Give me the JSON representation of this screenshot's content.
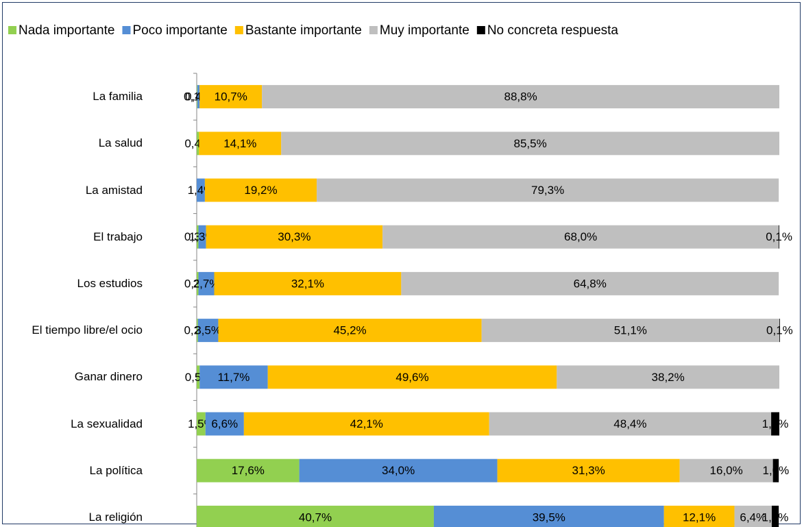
{
  "chart_data": {
    "type": "stacked-bar-horizontal",
    "categories": [
      "La familia",
      "La salud",
      "La amistad",
      "El trabajo",
      "Los estudios",
      "El tiempo libre/el ocio",
      "Ganar dinero",
      "La sexualidad",
      "La política",
      "La religión"
    ],
    "xlim": [
      0,
      100
    ],
    "legend": "top",
    "series": [
      {
        "name": "Nada importante",
        "color": "#92d050",
        "values": [
          0.1,
          0.4,
          null,
          0.3,
          0.3,
          0.2,
          0.5,
          1.5,
          17.6,
          40.7
        ],
        "value_labels": [
          "0,1%",
          "0,4%",
          null,
          "0,3%",
          "0,3%",
          "0,2%",
          "0,5%",
          "1,5%",
          "17,6%",
          "40,7%"
        ]
      },
      {
        "name": "Poco importante",
        "color": "#558ed5",
        "values": [
          0.4,
          null,
          1.4,
          1.3,
          2.7,
          3.5,
          11.7,
          6.6,
          34.0,
          39.5
        ],
        "value_labels": [
          "0,4%",
          null,
          "1,4%",
          "1,3%",
          "2,7%",
          "3,5%",
          "11,7%",
          "6,6%",
          "34,0%",
          "39,5%"
        ]
      },
      {
        "name": "Bastante importante",
        "color": "#ffc000",
        "values": [
          10.7,
          14.1,
          19.2,
          30.3,
          32.1,
          45.2,
          49.6,
          42.1,
          31.3,
          12.1
        ],
        "value_labels": [
          "10,7%",
          "14,1%",
          "19,2%",
          "30,3%",
          "32,1%",
          "45,2%",
          "49,6%",
          "42,1%",
          "31,3%",
          "12,1%"
        ]
      },
      {
        "name": "Muy importante",
        "color": "#bfbfbf",
        "values": [
          88.8,
          85.5,
          79.3,
          68.0,
          64.8,
          51.1,
          38.2,
          48.4,
          16.0,
          6.4
        ],
        "value_labels": [
          "88,8%",
          "85,5%",
          "79,3%",
          "68,0%",
          "64,8%",
          "51,1%",
          "38,2%",
          "48,4%",
          "16,0%",
          "6,4%"
        ]
      },
      {
        "name": "No concreta respuesta",
        "color": "#000000",
        "values": [
          null,
          null,
          null,
          0.1,
          null,
          0.1,
          null,
          1.4,
          1.0,
          1.2
        ],
        "value_labels": [
          null,
          null,
          null,
          "0,1%",
          null,
          "0,1%",
          null,
          "1,4%",
          "1,0%",
          "1,2%"
        ]
      }
    ]
  }
}
